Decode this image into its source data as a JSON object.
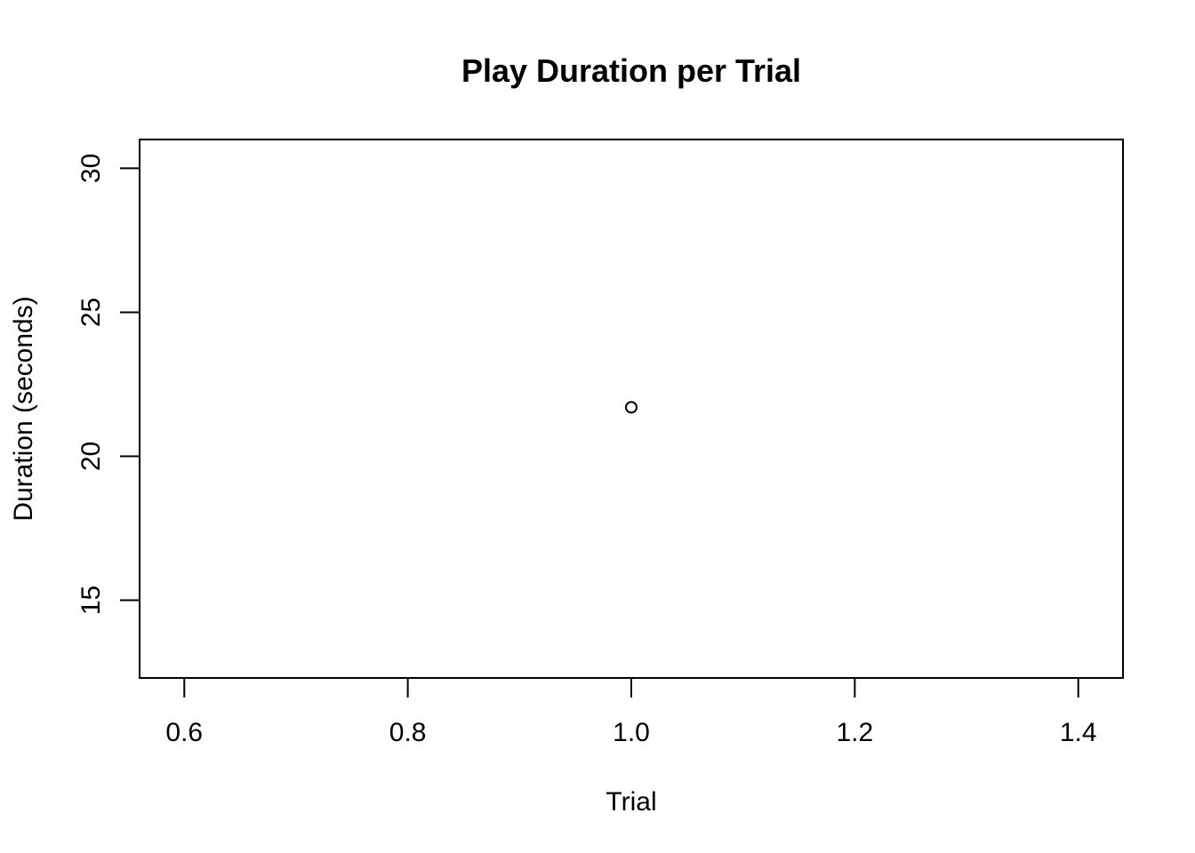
{
  "chart_data": {
    "type": "scatter",
    "title": "Play Duration per Trial",
    "xlabel": "Trial",
    "ylabel": "Duration (seconds)",
    "xlim": [
      0.56,
      1.44
    ],
    "ylim": [
      12.3,
      31.0
    ],
    "x_ticks": [
      0.6,
      0.8,
      1.0,
      1.2,
      1.4
    ],
    "x_tick_labels": [
      "0.6",
      "0.8",
      "1.0",
      "1.2",
      "1.4"
    ],
    "y_ticks": [
      15,
      20,
      25,
      30
    ],
    "y_tick_labels": [
      "15",
      "20",
      "25",
      "30"
    ],
    "points": [
      {
        "x": 1.0,
        "y": 21.7
      }
    ],
    "marker": "open-circle",
    "grid": false,
    "colors": {
      "axis": "#000000",
      "marker_stroke": "#000000",
      "background": "#ffffff"
    }
  }
}
